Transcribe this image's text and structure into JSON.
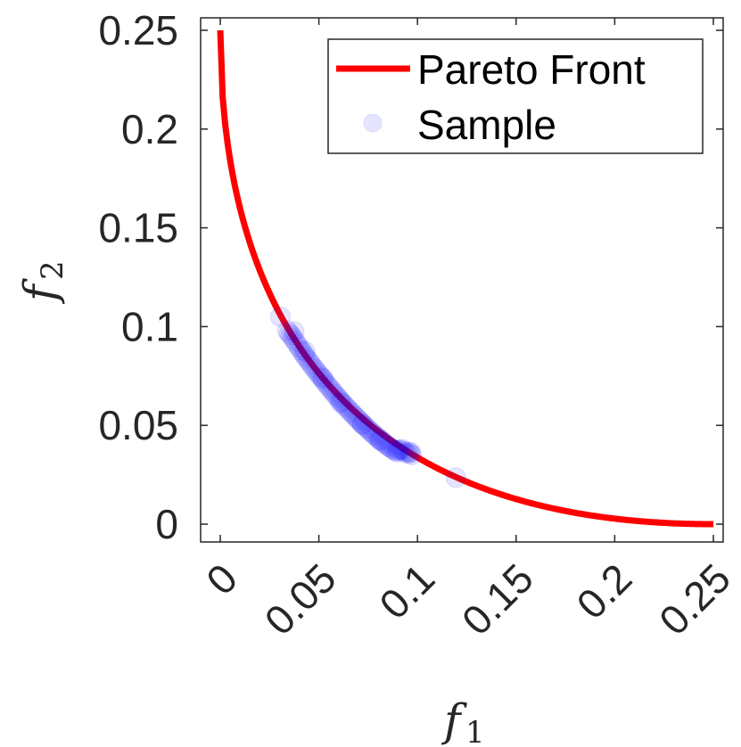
{
  "chart_data": {
    "type": "scatter",
    "title": "",
    "xlabel": "f",
    "xlabel_sub": "1",
    "ylabel": "f",
    "ylabel_sub": "2",
    "xlim": [
      0,
      0.25
    ],
    "ylim": [
      0,
      0.25
    ],
    "x_ticks": [
      "0",
      "0.05",
      "0.1",
      "0.15",
      "0.2",
      "0.25"
    ],
    "y_ticks": [
      "0",
      "0.05",
      "0.1",
      "0.15",
      "0.2",
      "0.25"
    ],
    "grid": false,
    "legend_position": "top-right",
    "series": [
      {
        "name": "Pareto Front",
        "kind": "line",
        "color": "#ff0000",
        "x": [
          0,
          0.0025,
          0.005,
          0.01,
          0.015,
          0.02,
          0.025,
          0.03,
          0.035,
          0.04,
          0.05,
          0.06,
          0.07,
          0.08,
          0.09,
          0.1,
          0.11,
          0.12,
          0.13,
          0.14,
          0.15,
          0.16,
          0.17,
          0.18,
          0.19,
          0.2,
          0.21,
          0.22,
          0.23,
          0.24,
          0.25
        ],
        "y": [
          0.25,
          0.2025,
          0.1882,
          0.1684,
          0.1537,
          0.1414,
          0.1309,
          0.1215,
          0.1129,
          0.105,
          0.091,
          0.0788,
          0.0679,
          0.0581,
          0.0492,
          0.0412,
          0.034,
          0.0275,
          0.0216,
          0.0165,
          0.012,
          0.0082,
          0.0051,
          0.0027,
          0.001,
          0.0013,
          0.0005,
          0.0002,
          0.0001,
          2e-05,
          0
        ]
      },
      {
        "name": "Sample",
        "kind": "scatter",
        "color": "#0000ff",
        "opacity": 0.1,
        "x": [
          0.0305,
          0.034,
          0.035,
          0.036,
          0.037,
          0.038,
          0.039,
          0.04,
          0.041,
          0.042,
          0.043,
          0.044,
          0.045,
          0.046,
          0.047,
          0.048,
          0.049,
          0.05,
          0.051,
          0.052,
          0.053,
          0.054,
          0.055,
          0.056,
          0.057,
          0.058,
          0.059,
          0.06,
          0.061,
          0.062,
          0.063,
          0.064,
          0.065,
          0.066,
          0.067,
          0.068,
          0.069,
          0.07,
          0.071,
          0.072,
          0.073,
          0.074,
          0.075,
          0.076,
          0.077,
          0.078,
          0.079,
          0.08,
          0.081,
          0.082,
          0.083,
          0.084,
          0.085,
          0.086,
          0.087,
          0.088,
          0.089,
          0.09,
          0.091,
          0.092,
          0.093,
          0.094,
          0.095,
          0.096,
          0.097,
          0.0375,
          0.043,
          0.052,
          0.061,
          0.072,
          0.081,
          0.09,
          0.0965,
          0.1195
        ],
        "y": [
          0.105,
          0.098,
          0.0965,
          0.0955,
          0.094,
          0.0925,
          0.091,
          0.0895,
          0.088,
          0.0865,
          0.085,
          0.0838,
          0.0825,
          0.081,
          0.0797,
          0.0785,
          0.0772,
          0.0758,
          0.0746,
          0.0733,
          0.0721,
          0.0708,
          0.0696,
          0.0684,
          0.0672,
          0.066,
          0.0648,
          0.0637,
          0.0625,
          0.0614,
          0.0602,
          0.0592,
          0.0581,
          0.057,
          0.056,
          0.0549,
          0.0539,
          0.0529,
          0.0519,
          0.0509,
          0.05,
          0.049,
          0.0481,
          0.0471,
          0.0462,
          0.0453,
          0.0445,
          0.0436,
          0.0428,
          0.042,
          0.0412,
          0.0404,
          0.0396,
          0.0389,
          0.0382,
          0.0375,
          0.0368,
          0.0365,
          0.0375,
          0.038,
          0.037,
          0.036,
          0.0365,
          0.0358,
          0.035,
          0.0975,
          0.0875,
          0.074,
          0.0615,
          0.0505,
          0.0425,
          0.0375,
          0.0365,
          0.0235
        ]
      }
    ]
  }
}
